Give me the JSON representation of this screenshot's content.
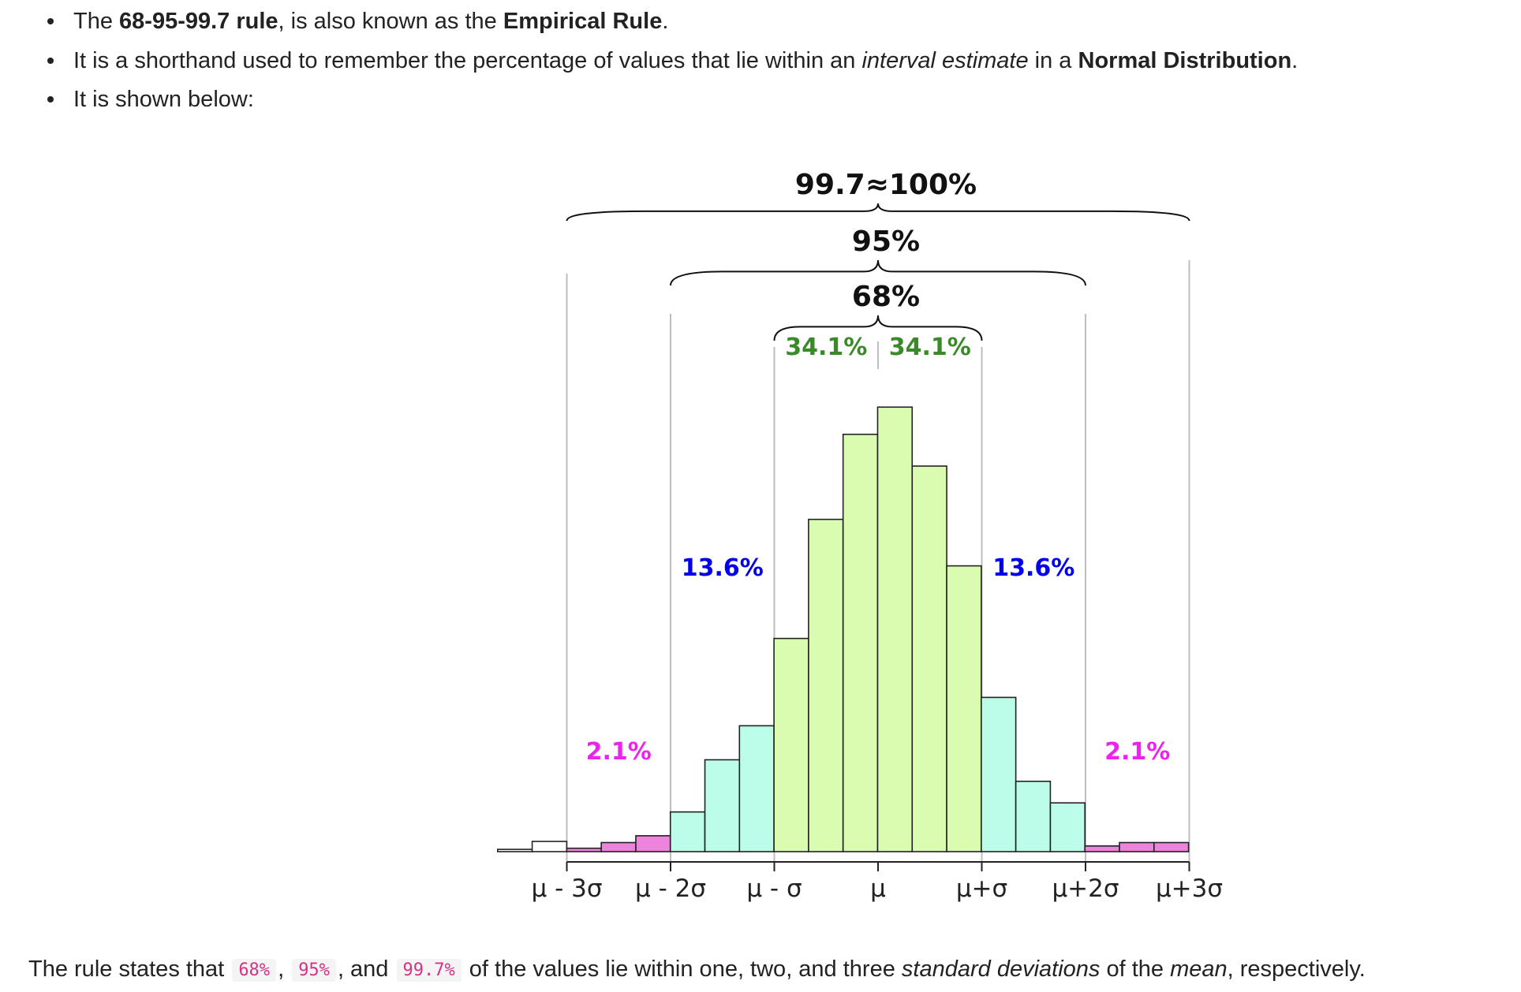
{
  "bullets": [
    {
      "t1": "The ",
      "b1": "68-95-99.7 rule",
      "t2": ", is also known as the ",
      "b2": "Empirical Rule",
      "t3": "."
    },
    {
      "t1": "It is a shorthand used to remember the percentage of values that lie within an ",
      "i1": "interval estimate",
      "t2": " in a ",
      "b1": "Normal Distribution",
      "t3": "."
    },
    {
      "t1": "It is shown below:"
    }
  ],
  "chart_data": {
    "type": "bar",
    "title": "",
    "xlabel": "",
    "ylabel": "",
    "x_ticks": [
      "μ - 3σ",
      "μ - 2σ",
      "μ - σ",
      "μ",
      "μ+σ",
      "μ+2σ",
      "μ+3σ"
    ],
    "bin_width_sigma": 0.333,
    "bin_start_sigma": -3.667,
    "values": [
      0.002,
      0.009,
      0.003,
      0.008,
      0.014,
      0.035,
      0.081,
      0.111,
      0.188,
      0.293,
      0.368,
      0.392,
      0.34,
      0.252,
      0.136,
      0.062,
      0.043,
      0.005,
      0.008,
      0.008
    ],
    "bin_colors": [
      "#ffffff",
      "#ffffff",
      "#ee82dd",
      "#ee82dd",
      "#ee82dd",
      "#bbfde9",
      "#bbfde9",
      "#bbfde9",
      "#d9fcb1",
      "#d9fcb1",
      "#d9fcb1",
      "#d9fcb1",
      "#d9fcb1",
      "#d9fcb1",
      "#bbfde9",
      "#bbfde9",
      "#bbfde9",
      "#ee82dd",
      "#ee82dd",
      "#ee82dd"
    ],
    "ylim": [
      0,
      0.42
    ],
    "grid": false,
    "region_labels": [
      {
        "text": "34.1%",
        "color": "#3a8a2a",
        "from": -1,
        "to": 0
      },
      {
        "text": "34.1%",
        "color": "#3a8a2a",
        "from": 0,
        "to": 1
      },
      {
        "text": "13.6%",
        "color": "#0000ee",
        "from": -2,
        "to": -1
      },
      {
        "text": "13.6%",
        "color": "#0000ee",
        "from": 1,
        "to": 2
      },
      {
        "text": "2.1%",
        "color": "#ee22ee",
        "from": -3,
        "to": -2
      },
      {
        "text": "2.1%",
        "color": "#ee22ee",
        "from": 2,
        "to": 3
      }
    ],
    "brace_labels": [
      {
        "text": "68%",
        "from": -1,
        "to": 1
      },
      {
        "text": "95%",
        "from": -2,
        "to": 2
      },
      {
        "text": "99.7≈100%",
        "from": -3,
        "to": 3
      }
    ]
  },
  "bottom": {
    "t1": "The rule states that ",
    "c1": "68%",
    "s1": ", ",
    "c2": "95%",
    "s2": ", and ",
    "c3": "99.7%",
    "t2": " of the values lie within one, two, and three ",
    "i1": "standard deviations",
    "t3": " of the ",
    "i2": "mean",
    "t4": ", respectively."
  }
}
